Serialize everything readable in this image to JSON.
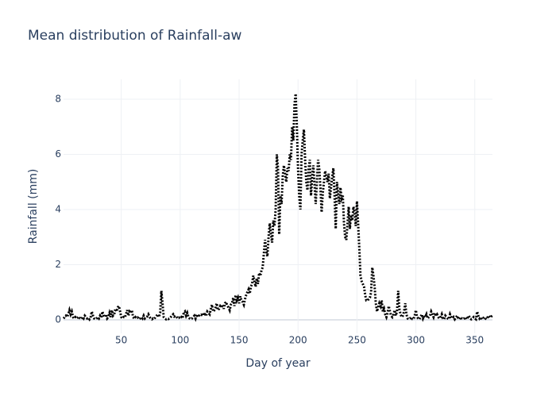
{
  "chart_data": {
    "type": "line",
    "title": "Mean distribution of Rainfall-aw",
    "x_label": "Day of year",
    "y_label": "Rainfall (mm)",
    "x": [
      1,
      2,
      3,
      4,
      5,
      6,
      7,
      8,
      9,
      10,
      11,
      12,
      13,
      14,
      15,
      16,
      17,
      18,
      19,
      20,
      21,
      22,
      23,
      24,
      25,
      26,
      27,
      28,
      29,
      30,
      31,
      32,
      33,
      34,
      35,
      36,
      37,
      38,
      39,
      40,
      41,
      42,
      43,
      44,
      45,
      46,
      47,
      48,
      49,
      50,
      51,
      52,
      53,
      54,
      55,
      56,
      57,
      58,
      59,
      60,
      61,
      62,
      63,
      64,
      65,
      66,
      67,
      68,
      69,
      70,
      71,
      72,
      73,
      74,
      75,
      76,
      77,
      78,
      79,
      80,
      81,
      82,
      83,
      84,
      85,
      86,
      87,
      88,
      89,
      90,
      91,
      92,
      93,
      94,
      95,
      96,
      97,
      98,
      99,
      100,
      101,
      102,
      103,
      104,
      105,
      106,
      107,
      108,
      109,
      110,
      111,
      112,
      113,
      114,
      115,
      116,
      117,
      118,
      119,
      120,
      121,
      122,
      123,
      124,
      125,
      126,
      127,
      128,
      129,
      130,
      131,
      132,
      133,
      134,
      135,
      136,
      137,
      138,
      139,
      140,
      141,
      142,
      143,
      144,
      145,
      146,
      147,
      148,
      149,
      150,
      151,
      152,
      153,
      154,
      155,
      156,
      157,
      158,
      159,
      160,
      161,
      162,
      163,
      164,
      165,
      166,
      167,
      168,
      169,
      170,
      171,
      172,
      173,
      174,
      175,
      176,
      177,
      178,
      179,
      180,
      181,
      182,
      183,
      184,
      185,
      186,
      187,
      188,
      189,
      190,
      191,
      192,
      193,
      194,
      195,
      196,
      197,
      198,
      199,
      200,
      201,
      202,
      203,
      204,
      205,
      206,
      207,
      208,
      209,
      210,
      211,
      212,
      213,
      214,
      215,
      216,
      217,
      218,
      219,
      220,
      221,
      222,
      223,
      224,
      225,
      226,
      227,
      228,
      229,
      230,
      231,
      232,
      233,
      234,
      235,
      236,
      237,
      238,
      239,
      240,
      241,
      242,
      243,
      244,
      245,
      246,
      247,
      248,
      249,
      250,
      251,
      252,
      253,
      254,
      255,
      256,
      257,
      258,
      259,
      260,
      261,
      262,
      263,
      264,
      265,
      266,
      267,
      268,
      269,
      270,
      271,
      272,
      273,
      274,
      275,
      276,
      277,
      278,
      279,
      280,
      281,
      282,
      283,
      284,
      285,
      286,
      287,
      288,
      289,
      290,
      291,
      292,
      293,
      294,
      295,
      296,
      297,
      298,
      299,
      300,
      301,
      302,
      303,
      304,
      305,
      306,
      307,
      308,
      309,
      310,
      311,
      312,
      313,
      314,
      315,
      316,
      317,
      318,
      319,
      320,
      321,
      322,
      323,
      324,
      325,
      326,
      327,
      328,
      329,
      330,
      331,
      332,
      333,
      334,
      335,
      336,
      337,
      338,
      339,
      340,
      341,
      342,
      343,
      344,
      345,
      346,
      347,
      348,
      349,
      350,
      351,
      352,
      353,
      354,
      355,
      356,
      357,
      358,
      359,
      360,
      361,
      362,
      363,
      364,
      365
    ],
    "values": [
      0.05,
      0.1,
      0.15,
      0.1,
      0.2,
      0.35,
      0.2,
      0.3,
      0.1,
      0.05,
      0.1,
      0.05,
      0.08,
      0.12,
      0.05,
      0.03,
      0.1,
      0.05,
      0.15,
      0.1,
      0.05,
      0.08,
      0.02,
      0.1,
      0.3,
      0.15,
      0.05,
      0.02,
      0.05,
      0.1,
      0.05,
      0.15,
      0.08,
      0.3,
      0.15,
      0.1,
      0.2,
      0.05,
      0.1,
      0.25,
      0.1,
      0.35,
      0.15,
      0.2,
      0.4,
      0.3,
      0.45,
      0.5,
      0.3,
      0.1,
      0.05,
      0.1,
      0.08,
      0.2,
      0.35,
      0.15,
      0.3,
      0.25,
      0.35,
      0.1,
      0.05,
      0.1,
      0.05,
      0.08,
      0.02,
      0.05,
      0.1,
      0.05,
      0.15,
      0.05,
      0.1,
      0.12,
      0.2,
      0.1,
      0.05,
      0.02,
      0.05,
      0.03,
      0.1,
      0.15,
      0.2,
      0.1,
      0.25,
      1.05,
      0.6,
      0.1,
      0.05,
      0.02,
      0.05,
      0.03,
      0.05,
      0.1,
      0.15,
      0.2,
      0.12,
      0.15,
      0.1,
      0.05,
      0.08,
      0.05,
      0.1,
      0.05,
      0.25,
      0.3,
      0.15,
      0.25,
      0.1,
      0.05,
      0.02,
      0.05,
      0.1,
      0.15,
      0.05,
      0.2,
      0.1,
      0.15,
      0.2,
      0.18,
      0.25,
      0.15,
      0.2,
      0.15,
      0.3,
      0.25,
      0.2,
      0.4,
      0.55,
      0.3,
      0.35,
      0.45,
      0.6,
      0.35,
      0.4,
      0.5,
      0.45,
      0.55,
      0.4,
      0.6,
      0.65,
      0.5,
      0.45,
      0.35,
      0.55,
      0.6,
      0.8,
      0.5,
      0.9,
      0.7,
      0.8,
      0.6,
      0.85,
      0.7,
      0.65,
      0.55,
      0.75,
      0.9,
      1.0,
      1.1,
      0.95,
      1.2,
      1.3,
      1.6,
      1.4,
      1.2,
      1.5,
      1.3,
      1.7,
      1.6,
      1.8,
      1.9,
      2.4,
      2.9,
      2.5,
      2.3,
      3.0,
      3.5,
      3.1,
      2.8,
      3.6,
      3.4,
      4.0,
      6.0,
      5.5,
      3.1,
      4.5,
      4.2,
      5.2,
      5.6,
      5.3,
      5.0,
      5.5,
      5.4,
      6.0,
      5.8,
      7.0,
      6.5,
      7.8,
      8.2,
      7.0,
      5.5,
      4.5,
      4.0,
      6.0,
      6.5,
      6.9,
      5.8,
      5.0,
      4.7,
      5.5,
      5.8,
      4.5,
      5.2,
      5.6,
      4.9,
      4.2,
      5.0,
      5.8,
      5.5,
      4.8,
      3.9,
      4.6,
      5.0,
      5.4,
      5.2,
      5.0,
      5.3,
      4.4,
      4.8,
      5.2,
      5.5,
      4.5,
      3.3,
      5.0,
      4.6,
      4.2,
      4.8,
      4.4,
      4.5,
      3.5,
      3.0,
      2.9,
      3.5,
      4.1,
      3.3,
      3.8,
      3.6,
      4.1,
      3.9,
      3.4,
      4.3,
      3.5,
      2.6,
      1.6,
      1.4,
      1.3,
      1.2,
      0.9,
      0.7,
      0.7,
      0.75,
      0.8,
      1.0,
      1.9,
      1.6,
      1.2,
      0.6,
      0.3,
      0.45,
      0.6,
      0.5,
      0.7,
      0.3,
      0.4,
      0.2,
      0.1,
      0.25,
      0.5,
      0.3,
      0.15,
      0.1,
      0.2,
      0.35,
      0.15,
      0.3,
      1.05,
      0.4,
      0.2,
      0.1,
      0.15,
      0.3,
      0.6,
      0.2,
      0.05,
      0.02,
      0.05,
      0.1,
      0.03,
      0.02,
      0.15,
      0.35,
      0.1,
      0.05,
      0.02,
      0.1,
      0.2,
      0.05,
      0.15,
      0.1,
      0.2,
      0.05,
      0.1,
      0.15,
      0.3,
      0.2,
      0.1,
      0.25,
      0.15,
      0.2,
      0.1,
      0.05,
      0.1,
      0.2,
      0.05,
      0.02,
      0.15,
      0.1,
      0.05,
      0.02,
      0.2,
      0.1,
      0.05,
      0.1,
      0.02,
      0.08,
      0.15,
      0.05,
      0.02,
      0.1,
      0.05,
      0.02,
      0.05,
      0.1,
      0.02,
      0.08,
      0.15,
      0.05,
      0.02,
      0.05,
      0.1,
      0.05,
      0.02,
      0.3,
      0.15,
      0.05,
      0.1,
      0.02,
      0.05,
      0.1,
      0.05,
      0.02,
      0.1,
      0.15,
      0.08,
      0.12,
      0.15
    ],
    "color": "#000000",
    "xlim": [
      1,
      365
    ],
    "xticks": [
      50,
      100,
      150,
      200,
      250,
      300,
      350
    ],
    "ylim": [
      -0.49,
      8.72
    ],
    "yticks": [
      0,
      2,
      4,
      6,
      8
    ],
    "grid": true
  }
}
